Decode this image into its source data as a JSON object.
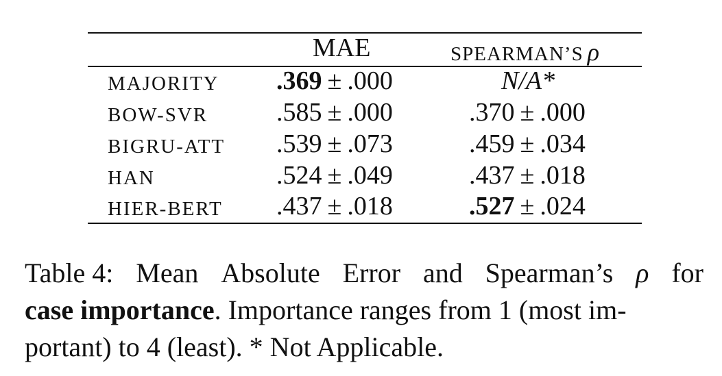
{
  "table": {
    "header": {
      "mae": "MAE",
      "spearman": "SPEARMAN’S",
      "rho": "ρ"
    },
    "pm": "±",
    "rows": [
      {
        "model": "MAJORITY",
        "mae_val": ".369",
        "mae_err": ".000",
        "sp_text": "N/A*"
      },
      {
        "model": "BOW-SVR",
        "mae_val": ".585",
        "mae_err": ".000",
        "sp_val": ".370",
        "sp_err": ".000"
      },
      {
        "model": "BIGRU-ATT",
        "mae_val": ".539",
        "mae_err": ".073",
        "sp_val": ".459",
        "sp_err": ".034"
      },
      {
        "model": "HAN",
        "mae_val": ".524",
        "mae_err": ".049",
        "sp_val": ".437",
        "sp_err": ".018"
      },
      {
        "model": "HIER-BERT",
        "mae_val": ".437",
        "mae_err": ".018",
        "sp_val": ".527",
        "sp_err": ".024"
      }
    ]
  },
  "caption": {
    "prefix": "Table 4:",
    "l1_words": [
      "Mean",
      "Absolute",
      "Error",
      "and",
      "Spearman’s"
    ],
    "rho": "ρ",
    "l1_end": "for",
    "bold_term": "case importance",
    "l2_rest": ". Importance ranges from 1 (most im-",
    "l3": "portant) to 4 (least). * Not Applicable."
  }
}
